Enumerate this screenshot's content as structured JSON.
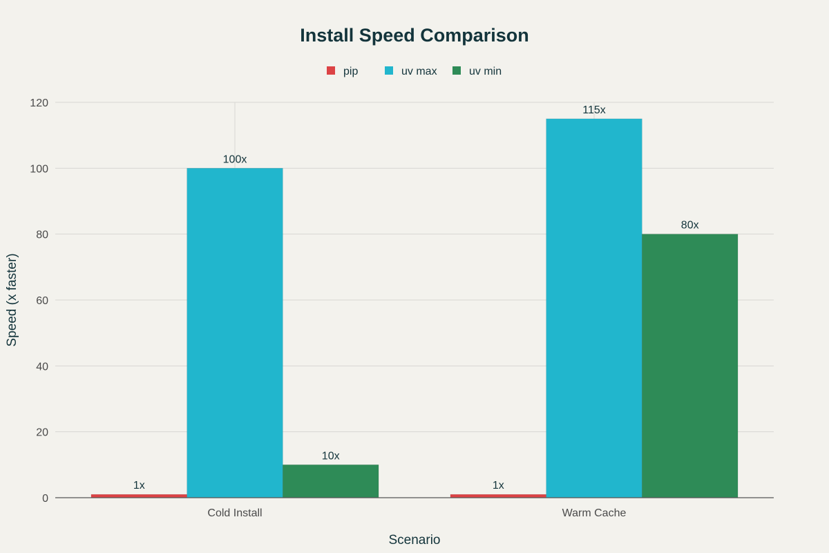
{
  "chart_data": {
    "type": "bar",
    "title": "Install Speed Comparison",
    "xlabel": "Scenario",
    "ylabel": "Speed (x faster)",
    "categories": [
      "Cold Install",
      "Warm Cache"
    ],
    "series": [
      {
        "name": "pip",
        "values": [
          1,
          1
        ],
        "labels": [
          "1x",
          "1x"
        ],
        "color": "#dc4345"
      },
      {
        "name": "uv max",
        "values": [
          100,
          115
        ],
        "labels": [
          "100x",
          "115x"
        ],
        "color": "#21b6cd"
      },
      {
        "name": "uv min",
        "values": [
          10,
          80
        ],
        "labels": [
          "10x",
          "80x"
        ],
        "color": "#2e8b57"
      }
    ],
    "ylim": [
      0,
      120
    ],
    "yticks": [
      0,
      20,
      40,
      60,
      80,
      100,
      120
    ],
    "grid": true,
    "legend": "top-center"
  }
}
